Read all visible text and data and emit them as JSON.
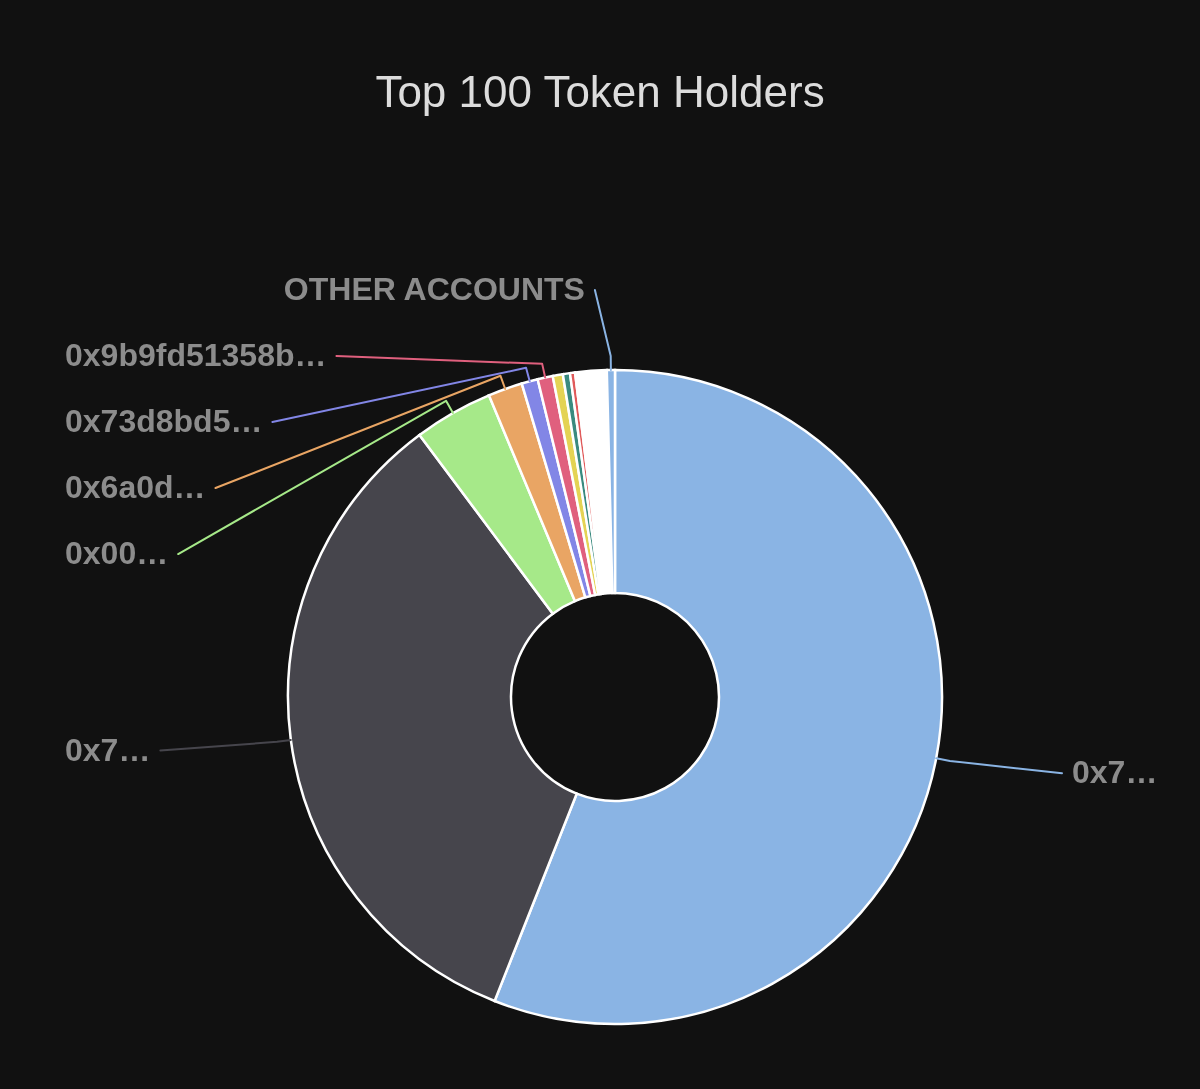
{
  "chart_data": {
    "type": "donut",
    "title": "Top 100 Token Holders",
    "categories": [
      "0x7…",
      "0x7…",
      "0x00…",
      "0x6a0d…",
      "0x73d8bd5…",
      "0x9b9fd51358b…",
      null,
      null,
      null,
      null,
      "OTHER ACCOUNTS"
    ],
    "values": [
      56.0,
      33.8,
      3.9,
      1.7,
      0.8,
      0.75,
      0.5,
      0.35,
      0.25,
      1.55,
      0.4
    ],
    "colors": [
      "#8ab4e4",
      "#46454c",
      "#a6e989",
      "#e9a564",
      "#8286e6",
      "#e0607e",
      "#e4d354",
      "#3a8a7f",
      "#e05a5a",
      "#ffffff",
      "#8ab4e4"
    ]
  }
}
